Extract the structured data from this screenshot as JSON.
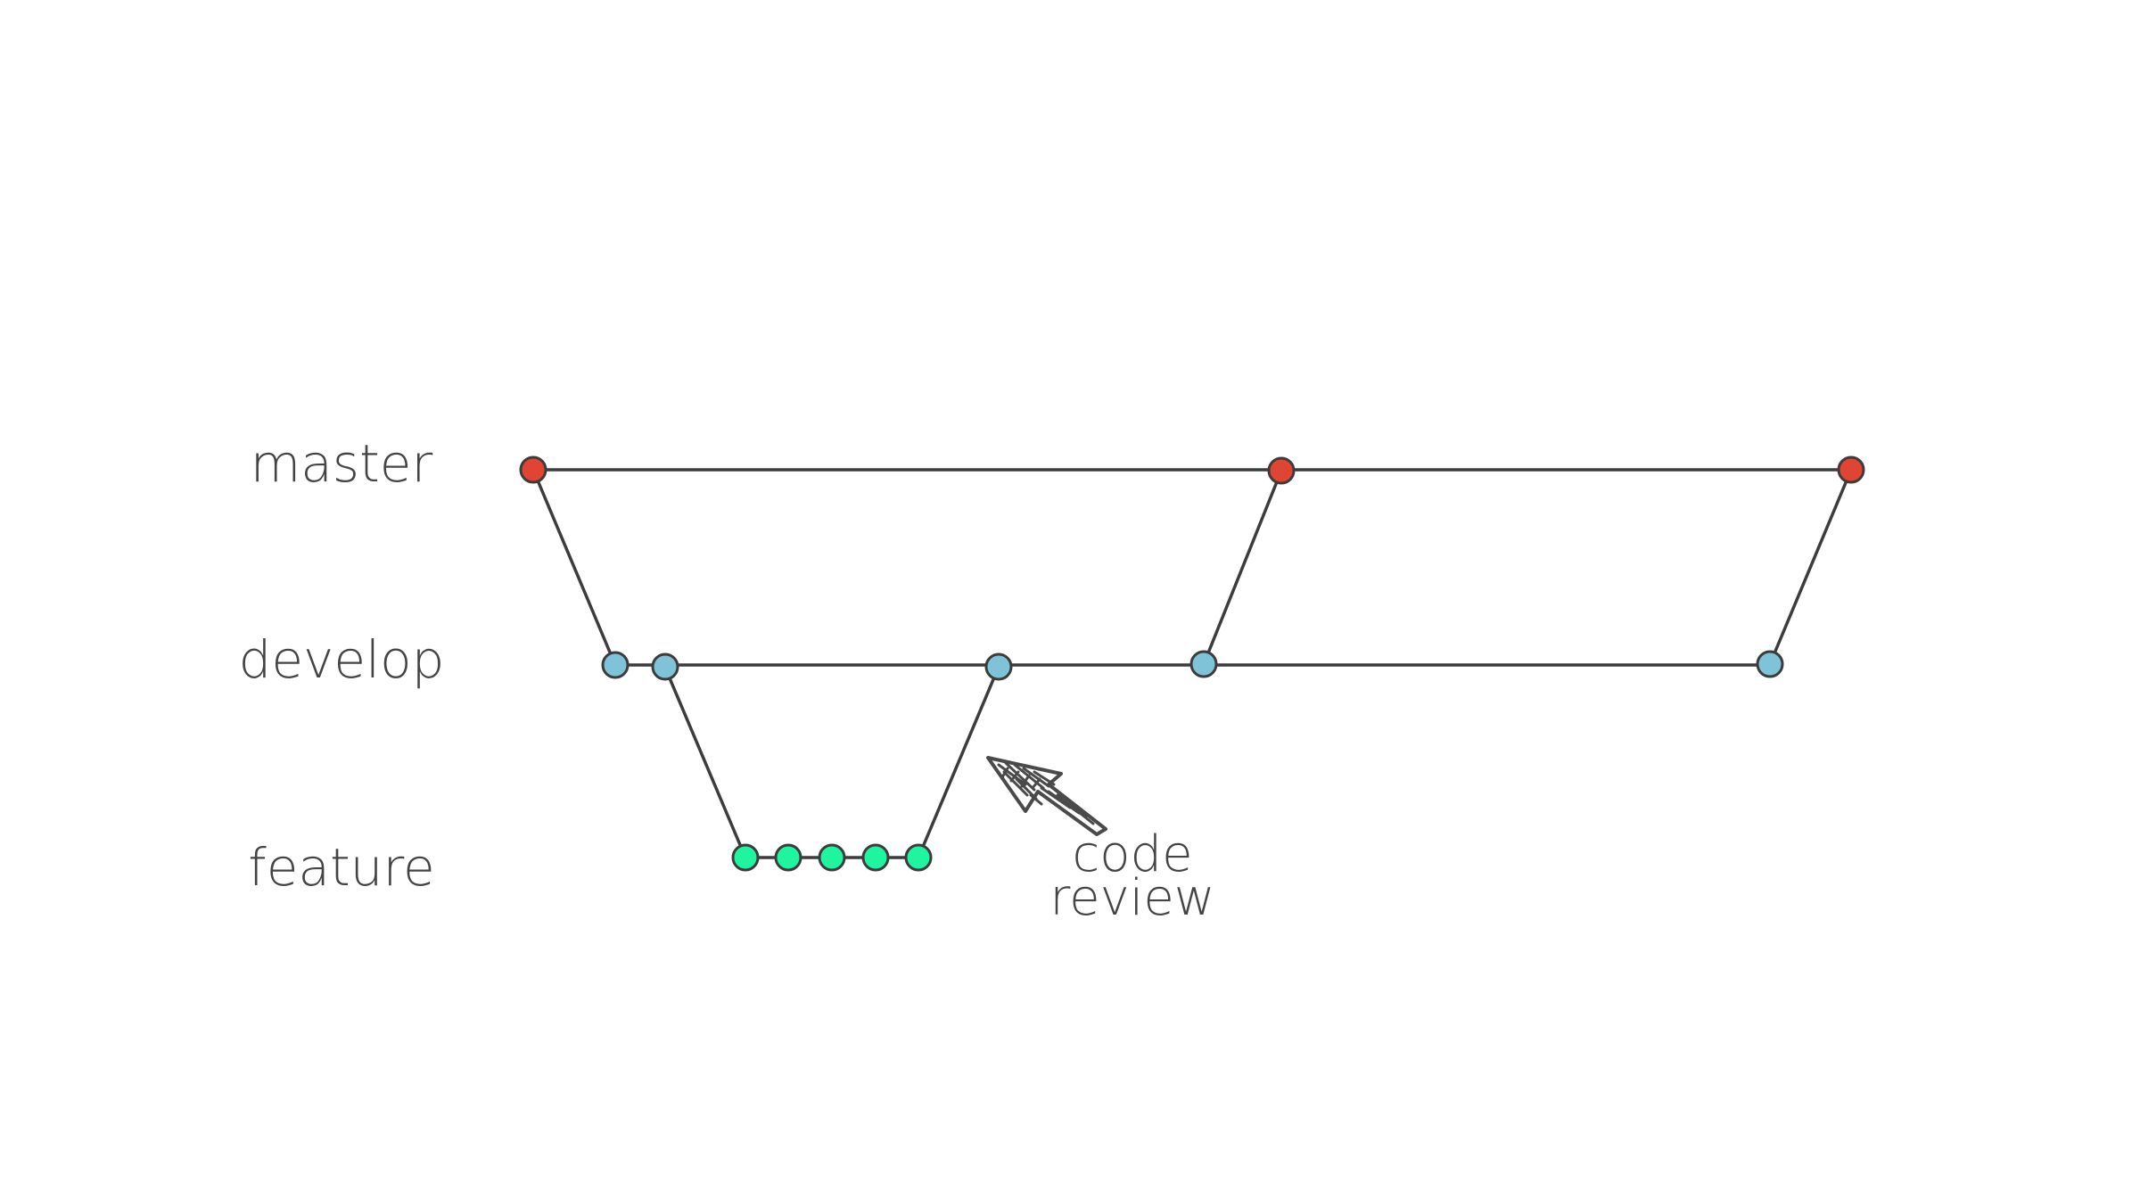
{
  "colors": {
    "master": "#e04433",
    "develop": "#7ec3d8",
    "feature": "#1ff59e",
    "line": "#3c3c3c",
    "text": "#444444",
    "arrow": "#4a4a4a"
  },
  "branches": {
    "master": {
      "label": "master",
      "commit_count": 3
    },
    "develop": {
      "label": "develop",
      "commit_count": 5
    },
    "feature": {
      "label": "feature",
      "commit_count": 5
    }
  },
  "annotation": {
    "line1": "code",
    "line2": "review",
    "icon": "hand-drawn-arrow-icon"
  }
}
